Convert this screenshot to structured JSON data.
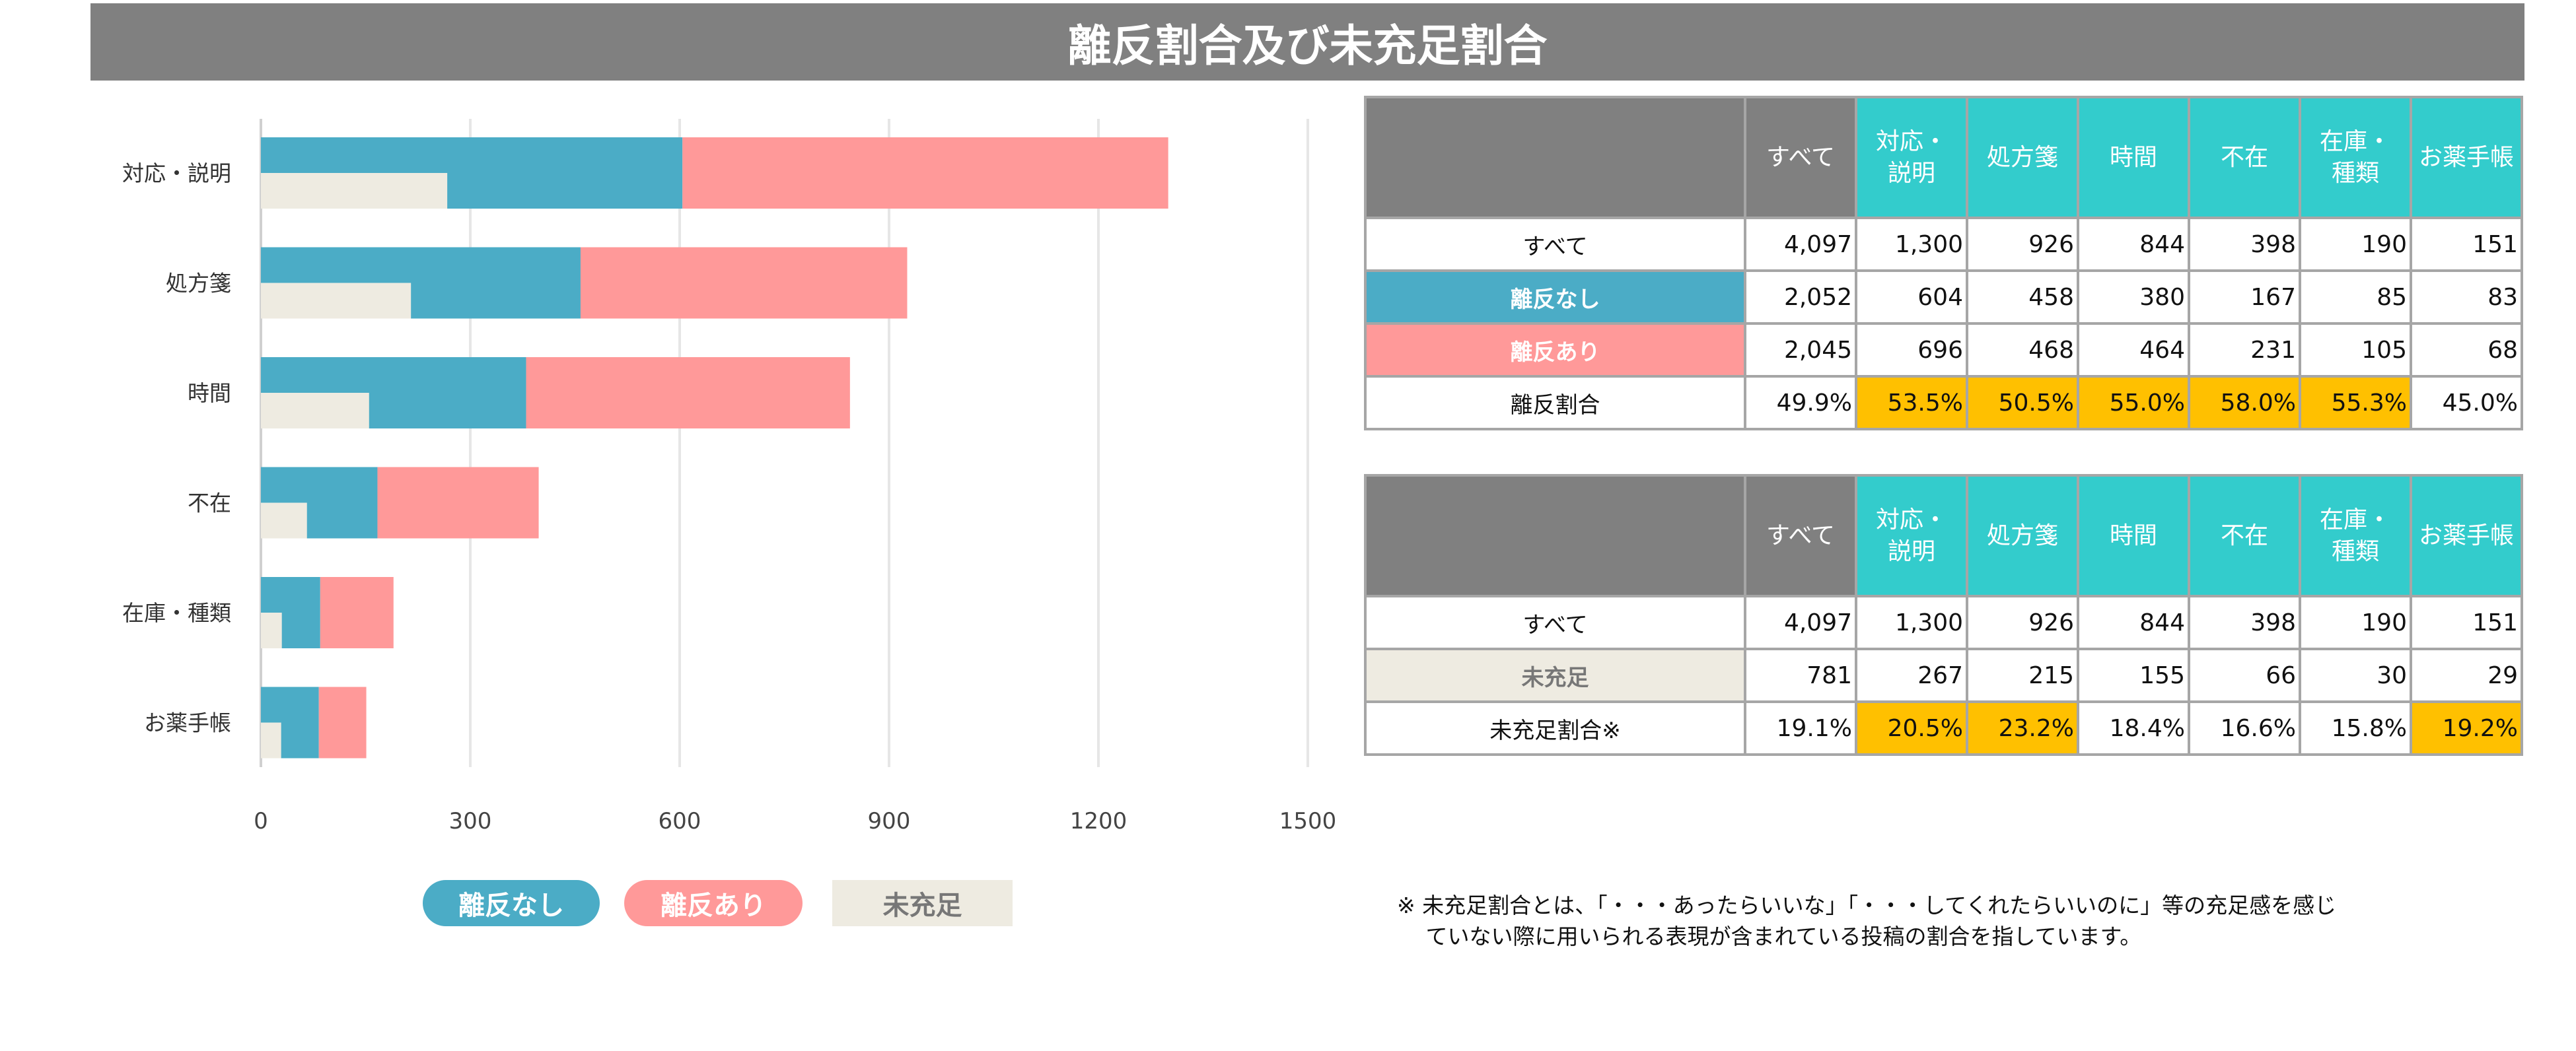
{
  "title": "離反割合及び未充足割合",
  "colors": {
    "no_churn": "#4bacc6",
    "churn": "#ff9999",
    "unmet": "#eeebe1",
    "header_accent": "#33cccc",
    "header_gray": "#808080",
    "highlight": "#ffc000"
  },
  "chart_data": {
    "type": "bar",
    "orientation": "horizontal",
    "stacked": true,
    "categories": [
      "対応・説明",
      "処方箋",
      "時間",
      "不在",
      "在庫・種類",
      "お薬手帳"
    ],
    "series": [
      {
        "name": "離反なし",
        "values": [
          604,
          458,
          380,
          167,
          85,
          83
        ],
        "color": "#4bacc6"
      },
      {
        "name": "離反あり",
        "values": [
          696,
          468,
          464,
          231,
          105,
          68
        ],
        "color": "#ff9999"
      },
      {
        "name": "未充足",
        "values": [
          267,
          215,
          155,
          66,
          30,
          29
        ],
        "color": "#eeebe1"
      }
    ],
    "xlim": [
      0,
      1500
    ],
    "xticks": [
      "0",
      "300",
      "600",
      "900",
      "1200",
      "1500"
    ],
    "grid": true,
    "legend": "bottom"
  },
  "table1": {
    "headers": [
      "すべて",
      "対応・\n説明",
      "処方箋",
      "時間",
      "不在",
      "在庫・\n種類",
      "お薬手帳"
    ],
    "rows": [
      {
        "label": "すべて",
        "cells": [
          "4,097",
          "1,300",
          "926",
          "844",
          "398",
          "190",
          "151"
        ]
      },
      {
        "label": "離反なし",
        "cells": [
          "2,052",
          "604",
          "458",
          "380",
          "167",
          "85",
          "83"
        ]
      },
      {
        "label": "離反あり",
        "cells": [
          "2,045",
          "696",
          "468",
          "464",
          "231",
          "105",
          "68"
        ]
      },
      {
        "label": "離反割合",
        "cells": [
          "49.9%",
          "53.5%",
          "50.5%",
          "55.0%",
          "58.0%",
          "55.3%",
          "45.0%"
        ],
        "highlight": [
          1,
          2,
          3,
          4,
          5
        ]
      }
    ]
  },
  "table2": {
    "headers": [
      "すべて",
      "対応・\n説明",
      "処方箋",
      "時間",
      "不在",
      "在庫・\n種類",
      "お薬手帳"
    ],
    "rows": [
      {
        "label": "すべて",
        "cells": [
          "4,097",
          "1,300",
          "926",
          "844",
          "398",
          "190",
          "151"
        ]
      },
      {
        "label": "未充足",
        "cells": [
          "781",
          "267",
          "215",
          "155",
          "66",
          "30",
          "29"
        ]
      },
      {
        "label": "未充足割合※",
        "cells": [
          "19.1%",
          "20.5%",
          "23.2%",
          "18.4%",
          "16.6%",
          "15.8%",
          "19.2%"
        ],
        "highlight": [
          1,
          2,
          6
        ]
      }
    ]
  },
  "footnote": {
    "line1": "※ 未充足割合とは、「・・・あったらいいな」「・・・してくれたらいいのに」等の充足感を感じ",
    "line2": "　 ていない際に用いられる表現が含まれている投稿の割合を指しています。"
  }
}
